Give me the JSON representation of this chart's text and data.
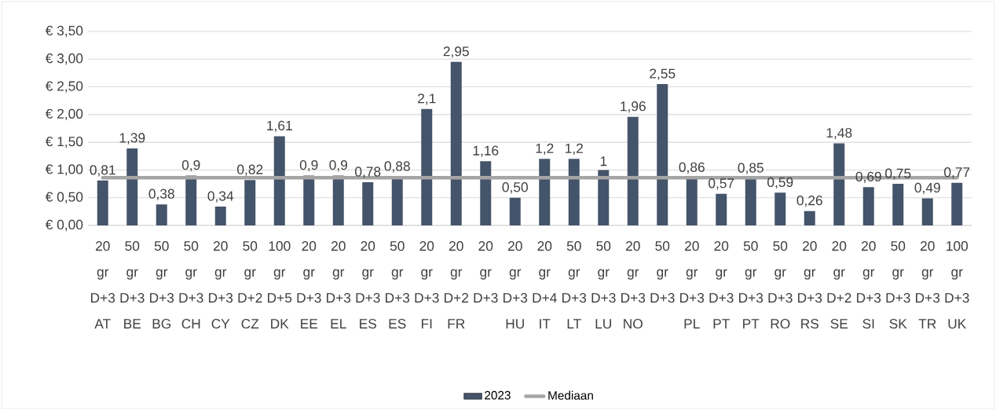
{
  "chart_data": {
    "type": "bar",
    "categories": [
      "20 gr D+3 AT",
      "50 gr D+3 BE",
      "50 gr D+3 BG",
      "50 gr D+3 CH",
      "20 gr D+3 CY",
      "50 gr D+2 CZ",
      "100 gr D+5 DK",
      "20 gr D+3 EE",
      "20 gr D+3 EL",
      "20 gr D+3 ES",
      "50 gr D+3 ES",
      "20 gr D+3 FI",
      "20 gr D+2 FR",
      "20 gr D+3",
      "20 gr D+3 HU",
      "20 gr D+4 IT",
      "50 gr D+3 LT",
      "50 gr D+3 LU",
      "20 gr D+3 NO",
      "50 gr D+3",
      "20 gr D+3 PL",
      "20 gr D+3 PT",
      "50 gr D+3 PT",
      "50 gr D+3 RO",
      "20 gr D+3 RS",
      "20 gr D+2 SE",
      "20 gr D+3 SI",
      "50 gr D+3 SK",
      "20 gr D+3 TR",
      "100 gr D+3 UK"
    ],
    "series": [
      {
        "name": "2023",
        "color": "#44546a",
        "values": [
          0.81,
          1.39,
          0.38,
          0.9,
          0.34,
          0.82,
          1.61,
          0.9,
          0.9,
          0.78,
          0.88,
          2.1,
          2.95,
          1.16,
          0.5,
          1.2,
          1.2,
          1,
          1.96,
          2.55,
          0.86,
          0.57,
          0.85,
          0.59,
          0.26,
          1.48,
          0.69,
          0.75,
          0.49,
          0.77
        ],
        "value_labels": [
          "0,81",
          "1,39",
          "0,38",
          "0,9",
          "0,34",
          "0,82",
          "1,61",
          "0,9",
          "0,9",
          "0,78",
          "0,88",
          "2,1",
          "2,95",
          "1,16",
          "0,50",
          "1,2",
          "1,2",
          "1",
          "1,96",
          "2,55",
          "0,86",
          "0,57",
          "0,85",
          "0,59",
          "0,26",
          "1,48",
          "0,69",
          "0,75",
          "0,49",
          "0,77"
        ]
      },
      {
        "name": "Mediaan",
        "type": "line",
        "color": "#a5a5a5",
        "values": [
          0.86,
          0.86,
          0.86,
          0.86,
          0.86,
          0.86,
          0.86,
          0.86,
          0.86,
          0.86,
          0.86,
          0.86,
          0.86,
          0.86,
          0.86,
          0.86,
          0.86,
          0.86,
          0.86,
          0.86,
          0.86,
          0.86,
          0.86,
          0.86,
          0.86,
          0.86,
          0.86,
          0.86,
          0.86,
          0.86
        ]
      }
    ],
    "ylim": [
      0,
      3.5
    ],
    "yticks": [
      {
        "value": 0,
        "label": "€ 0,00"
      },
      {
        "value": 0.5,
        "label": "€ 0,50"
      },
      {
        "value": 1,
        "label": "€ 1,00"
      },
      {
        "value": 1.5,
        "label": "€ 1,50"
      },
      {
        "value": 2,
        "label": "€ 2,00"
      },
      {
        "value": 2.5,
        "label": "€ 2,50"
      },
      {
        "value": 3,
        "label": "€ 3,00"
      },
      {
        "value": 3.5,
        "label": "€ 3,50"
      }
    ],
    "grid": "y",
    "legend": "bottom",
    "marker": "none"
  }
}
